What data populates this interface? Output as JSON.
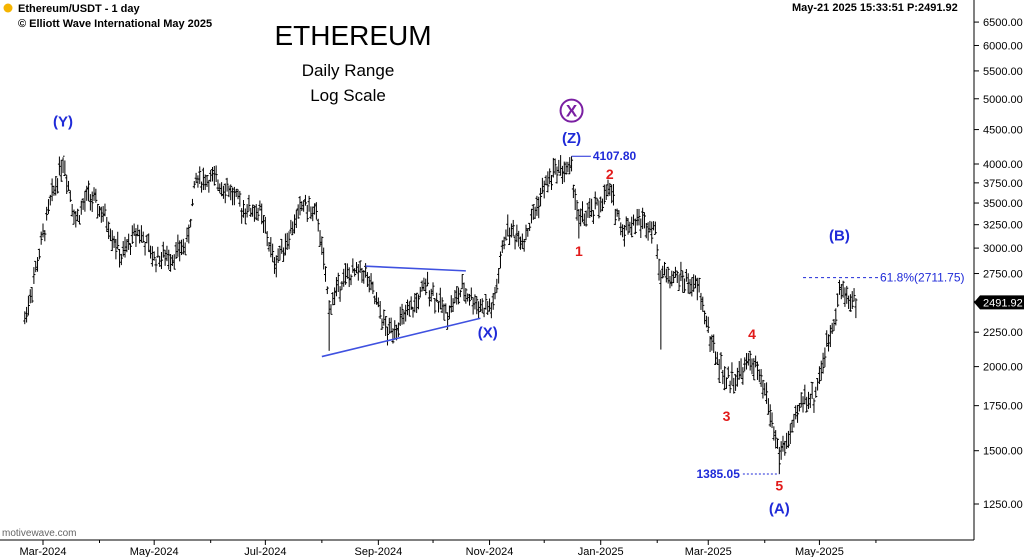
{
  "header": {
    "symbol_line": "Ethereum/USDT - 1 day",
    "copyright_line": "© Elliott Wave International May 2025",
    "status_line": "May-21 2025  15:33:51  P:2491.92",
    "status_dot_color": "#f5b400"
  },
  "watermark": "motivewave.com",
  "chart_data": {
    "type": "candlestick",
    "title": "ETHEREUM",
    "subtitle_lines": [
      "Daily Range",
      "Log Scale"
    ],
    "y_scale": "log",
    "ylim": [
      1100,
      6900
    ],
    "y_ticks": [
      1250,
      1500,
      1750,
      2000,
      2250,
      2500,
      2750,
      3000,
      3250,
      3500,
      3750,
      4000,
      4500,
      5000,
      5500,
      6000,
      6500
    ],
    "y_tick_labels": [
      "1250.00",
      "1500.00",
      "1750.00",
      "2000.00",
      "2250.00",
      "2500.00",
      "2750.00",
      "3000.00",
      "3250.00",
      "3500.00",
      "3750.00",
      "4000.00",
      "4500.00",
      "5000.00",
      "5500.00",
      "6000.00",
      "6500.00"
    ],
    "x_ticks": [
      "Mar-2024",
      "May-2024",
      "Jul-2024",
      "Sep-2024",
      "Nov-2024",
      "Jan-2025",
      "Mar-2025",
      "May-2025"
    ],
    "last_price": 2491.92,
    "last_price_label": "2491.92",
    "price_path": [
      [
        "2024-02-20",
        2350
      ],
      [
        "2024-02-28",
        2950
      ],
      [
        "2024-03-05",
        3500
      ],
      [
        "2024-03-12",
        4080
      ],
      [
        "2024-03-19",
        3300
      ],
      [
        "2024-03-26",
        3600
      ],
      [
        "2024-04-05",
        3300
      ],
      [
        "2024-04-13",
        2900
      ],
      [
        "2024-04-22",
        3200
      ],
      [
        "2024-05-01",
        2900
      ],
      [
        "2024-05-12",
        2930
      ],
      [
        "2024-05-19",
        3050
      ],
      [
        "2024-05-24",
        3800
      ],
      [
        "2024-06-01",
        3800
      ],
      [
        "2024-06-10",
        3700
      ],
      [
        "2024-06-18",
        3450
      ],
      [
        "2024-06-28",
        3400
      ],
      [
        "2024-07-06",
        2850
      ],
      [
        "2024-07-13",
        3100
      ],
      [
        "2024-07-22",
        3500
      ],
      [
        "2024-07-30",
        3300
      ],
      [
        "2024-08-05",
        2450
      ],
      [
        "2024-08-12",
        2700
      ],
      [
        "2024-08-24",
        2780
      ],
      [
        "2024-09-06",
        2250
      ],
      [
        "2024-09-18",
        2400
      ],
      [
        "2024-09-28",
        2650
      ],
      [
        "2024-10-08",
        2400
      ],
      [
        "2024-10-17",
        2600
      ],
      [
        "2024-10-28",
        2450
      ],
      [
        "2024-11-03",
        2450
      ],
      [
        "2024-11-10",
        3200
      ],
      [
        "2024-11-20",
        3100
      ],
      [
        "2024-12-01",
        3700
      ],
      [
        "2024-12-08",
        3950
      ],
      [
        "2024-12-16",
        3900
      ],
      [
        "2024-12-20",
        3300
      ],
      [
        "2024-12-28",
        3400
      ],
      [
        "2025-01-06",
        3650
      ],
      [
        "2025-01-13",
        3200
      ],
      [
        "2025-01-20",
        3300
      ],
      [
        "2025-01-30",
        3250
      ],
      [
        "2025-02-03",
        2750
      ],
      [
        "2025-02-15",
        2700
      ],
      [
        "2025-02-24",
        2600
      ],
      [
        "2025-03-03",
        2150
      ],
      [
        "2025-03-11",
        1900
      ],
      [
        "2025-03-18",
        1950
      ],
      [
        "2025-03-25",
        2050
      ],
      [
        "2025-04-02",
        1800
      ],
      [
        "2025-04-09",
        1480
      ],
      [
        "2025-04-16",
        1600
      ],
      [
        "2025-04-22",
        1800
      ],
      [
        "2025-04-28",
        1800
      ],
      [
        "2025-05-08",
        2300
      ],
      [
        "2025-05-12",
        2600
      ],
      [
        "2025-05-21",
        2491
      ]
    ],
    "spikes": [
      {
        "date": "2024-03-12",
        "high": 4093
      },
      {
        "date": "2024-08-05",
        "low": 2111
      },
      {
        "date": "2024-09-06",
        "low": 2150
      },
      {
        "date": "2024-12-16",
        "high": 4107.8
      },
      {
        "date": "2024-12-20",
        "low": 3100
      },
      {
        "date": "2025-02-03",
        "low": 2120
      },
      {
        "date": "2025-04-09",
        "low": 1385.05
      }
    ],
    "wave_labels": [
      {
        "text": "(Y)",
        "date": "2024-03-12",
        "price": 4550,
        "style": "blue"
      },
      {
        "text": "(X)",
        "date": "2024-10-31",
        "price": 2210,
        "style": "blue"
      },
      {
        "text": "(Z)",
        "date": "2024-12-16",
        "price": 4300,
        "style": "blue"
      },
      {
        "text": "X",
        "date": "2024-12-16",
        "price": 4720,
        "style": "purple-circle"
      },
      {
        "text": "1",
        "date": "2024-12-20",
        "price": 2920,
        "style": "red"
      },
      {
        "text": "2",
        "date": "2025-01-06",
        "price": 3800,
        "style": "red"
      },
      {
        "text": "3",
        "date": "2025-03-11",
        "price": 1660,
        "style": "red"
      },
      {
        "text": "4",
        "date": "2025-03-25",
        "price": 2200,
        "style": "red"
      },
      {
        "text": "5",
        "date": "2025-04-09",
        "price": 1310,
        "style": "red"
      },
      {
        "text": "(A)",
        "date": "2025-04-09",
        "price": 1210,
        "style": "blue"
      },
      {
        "text": "(B)",
        "date": "2025-05-12",
        "price": 3080,
        "style": "blue"
      }
    ],
    "triangle_lines": [
      {
        "from": [
          "2024-08-01",
          2070
        ],
        "to": [
          "2024-10-27",
          2360
        ]
      },
      {
        "from": [
          "2024-08-25",
          2820
        ],
        "to": [
          "2024-10-19",
          2775
        ]
      }
    ],
    "price_markers": [
      {
        "text": "4107.80",
        "date": "2024-12-16",
        "price": 4107.8,
        "line_to_date": "2024-12-20"
      },
      {
        "text": "1385.05",
        "date": "2025-04-09",
        "price": 1385.05,
        "line_from_date": "2025-03-20"
      }
    ],
    "fib_level": {
      "label": "61.8%(2711.75)",
      "price": 2711.75,
      "from_date": "2025-04-22"
    },
    "colors": {
      "bars": "#000000",
      "waves_blue": "#1f2ad8",
      "waves_red": "#e21a1a",
      "x_purple": "#7a1fa2",
      "triangle": "#3f51e0",
      "last_box": "#000000"
    }
  }
}
